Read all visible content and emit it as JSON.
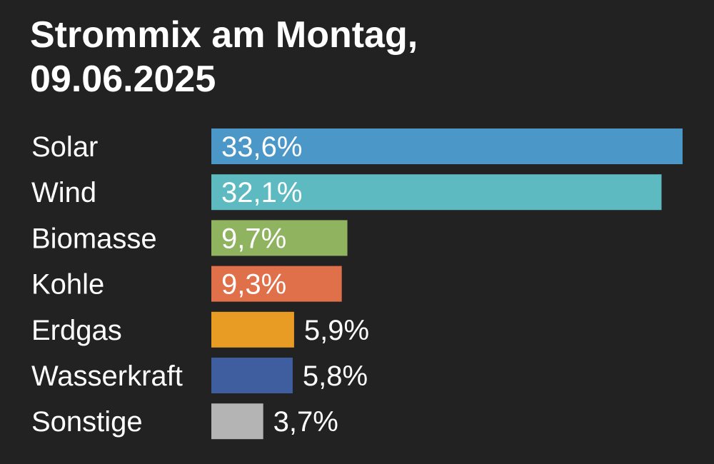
{
  "title_line1": "Strommix am Montag,",
  "title_line2": "09.06.2025",
  "chart_data": {
    "type": "bar",
    "orientation": "horizontal",
    "title": "Strommix am Montag, 09.06.2025",
    "categories": [
      "Solar",
      "Wind",
      "Biomasse",
      "Kohle",
      "Erdgas",
      "Wasserkraft",
      "Sonstige"
    ],
    "values": [
      33.6,
      32.1,
      9.7,
      9.3,
      5.9,
      5.8,
      3.7
    ],
    "value_labels": [
      "33,6%",
      "32,1%",
      "9,7%",
      "9,3%",
      "5,9%",
      "5,8%",
      "3,7%"
    ],
    "colors": [
      "#4a97c8",
      "#5cbac0",
      "#8fb35f",
      "#e0704a",
      "#e99c24",
      "#3f5ea0",
      "#b4b4b4"
    ],
    "unit": "%",
    "xlim": [
      0,
      33.6
    ],
    "grid": false,
    "legend": "none"
  }
}
